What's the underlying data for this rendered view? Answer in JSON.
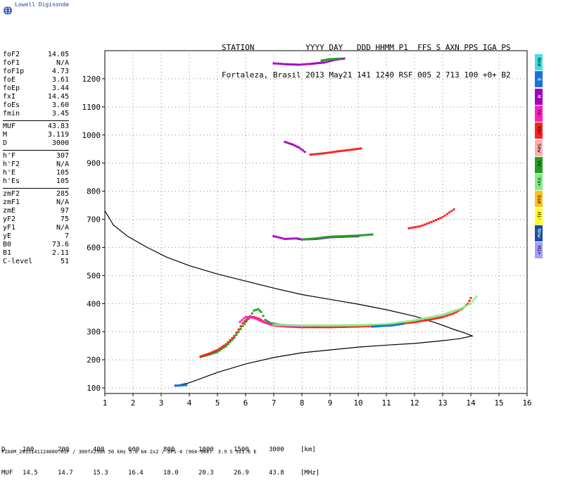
{
  "logo": {
    "text": "Lowell Digisonde"
  },
  "header": {
    "line1": "STATION           YYYY DAY   DDD HHMM P1  FFS S AXN PPS IGA PS",
    "line2": "Fortaleza, Brasil 2013 May21 141 1240 RSF 005 2 713 100 +0+ B2"
  },
  "params_group1": [
    {
      "name": "foF2",
      "value": "14.05"
    },
    {
      "name": "foF1",
      "value": "N/A"
    },
    {
      "name": "foF1p",
      "value": "4.73"
    },
    {
      "name": "foE",
      "value": "3.61"
    },
    {
      "name": "foEp",
      "value": "3.44"
    },
    {
      "name": "fxI",
      "value": "14.45"
    },
    {
      "name": "foEs",
      "value": "3.60"
    },
    {
      "name": "fmin",
      "value": "3.45"
    }
  ],
  "params_group2": [
    {
      "name": "MUF",
      "value": "43.83"
    },
    {
      "name": "M",
      "value": "3.119"
    },
    {
      "name": "D",
      "value": "3000"
    }
  ],
  "params_group3": [
    {
      "name": "h'F",
      "value": "307"
    },
    {
      "name": "h'F2",
      "value": "N/A"
    },
    {
      "name": "h'E",
      "value": "105"
    },
    {
      "name": "h'Es",
      "value": "105"
    }
  ],
  "params_group4": [
    {
      "name": "zmF2",
      "value": "285"
    },
    {
      "name": "zmF1",
      "value": "N/A"
    },
    {
      "name": "zmE",
      "value": "97"
    },
    {
      "name": "yF2",
      "value": "75"
    },
    {
      "name": "yF1",
      "value": "N/A"
    },
    {
      "name": "yE",
      "value": "7"
    },
    {
      "name": "B0",
      "value": "73.6"
    },
    {
      "name": "B1",
      "value": "2.11"
    },
    {
      "name": "C-level",
      "value": "51"
    }
  ],
  "legend": [
    {
      "label": "Nne",
      "color": "#40e0e0"
    },
    {
      "label": "E",
      "color": "#1a72d8"
    },
    {
      "label": "W",
      "color": "#a000c0"
    },
    {
      "label": "Vo-",
      "color": "#ff20c0"
    },
    {
      "label": "Xo+",
      "color": "#ff2020"
    },
    {
      "label": "Sew",
      "color": "#ffb0b0"
    },
    {
      "label": "Vo-",
      "color": "#20a020"
    },
    {
      "label": "Vo+",
      "color": "#80f080"
    },
    {
      "label": "Sse",
      "color": "#ffc020"
    },
    {
      "label": "Hi-",
      "color": "#ffff20"
    },
    {
      "label": "Nnw",
      "color": "#1a4fa0"
    },
    {
      "label": "Hi+",
      "color": "#a0a0ff"
    }
  ],
  "footer": {
    "d_label": "D",
    "d_values": [
      "100",
      "200",
      "400",
      "600",
      "800",
      "1000",
      "1500",
      "3000"
    ],
    "d_unit": "[km]",
    "muf_label": "MUF",
    "muf_values": [
      "14.5",
      "14.7",
      "15.3",
      "16.4",
      "18.0",
      "20.3",
      "26.9",
      "43.8"
    ],
    "muf_unit": "[MHz]",
    "file_line": "FZA0M_2013141124000.RSF / 300fx256h 50 kHz 5.0 km 2x2 / DPS-4 (904-904)  3.9 S 321.6 E"
  },
  "chart_data": {
    "type": "scatter",
    "xlim": [
      1,
      16
    ],
    "ylim": [
      80,
      1300
    ],
    "x_ticks": [
      1,
      2,
      3,
      4,
      5,
      6,
      7,
      8,
      9,
      10,
      11,
      12,
      13,
      14,
      15,
      16
    ],
    "y_ticks": [
      100,
      200,
      300,
      400,
      500,
      600,
      700,
      800,
      900,
      1000,
      1100,
      1200
    ],
    "grid": true,
    "series": [
      {
        "color": "#20a020",
        "points": [
          [
            4.4,
            210
          ],
          [
            4.7,
            218
          ],
          [
            5.0,
            228
          ],
          [
            5.3,
            248
          ],
          [
            5.6,
            278
          ],
          [
            5.9,
            320
          ],
          [
            6.1,
            345
          ],
          [
            6.3,
            375
          ],
          [
            6.45,
            380
          ],
          [
            6.55,
            370
          ],
          [
            6.7,
            342
          ],
          [
            6.9,
            330
          ],
          [
            7.2,
            325
          ],
          [
            7.6,
            322
          ]
        ]
      },
      {
        "color": "#ff2020",
        "points": [
          [
            4.4,
            212
          ],
          [
            4.7,
            222
          ],
          [
            5.0,
            235
          ],
          [
            5.3,
            255
          ],
          [
            5.6,
            285
          ],
          [
            5.9,
            330
          ],
          [
            6.1,
            350
          ],
          [
            6.3,
            352
          ],
          [
            6.5,
            345
          ],
          [
            6.7,
            332
          ],
          [
            7.0,
            322
          ],
          [
            7.5,
            318
          ],
          [
            8.0,
            316
          ],
          [
            9.0,
            316
          ],
          [
            10.0,
            318
          ],
          [
            11.0,
            322
          ],
          [
            11.5,
            328
          ],
          [
            12.0,
            334
          ],
          [
            12.5,
            342
          ],
          [
            13.0,
            352
          ],
          [
            13.4,
            365
          ],
          [
            13.7,
            382
          ],
          [
            13.9,
            400
          ],
          [
            14.0,
            420
          ]
        ]
      },
      {
        "color": "#ff20c0",
        "points": [
          [
            5.8,
            335
          ],
          [
            6.0,
            352
          ],
          [
            6.2,
            352
          ],
          [
            6.4,
            345
          ],
          [
            6.6,
            335
          ],
          [
            7.0,
            324
          ],
          [
            7.5,
            320
          ],
          [
            8.0,
            318
          ]
        ]
      },
      {
        "color": "#80f080",
        "points": [
          [
            7.0,
            325
          ],
          [
            8.0,
            322
          ],
          [
            9.0,
            322
          ],
          [
            10.0,
            323
          ],
          [
            11.0,
            326
          ],
          [
            12.0,
            340
          ],
          [
            13.0,
            360
          ],
          [
            13.6,
            380
          ],
          [
            14.0,
            400
          ],
          [
            14.2,
            425
          ]
        ]
      },
      {
        "color": "#a000c0",
        "points": [
          [
            7.0,
            640
          ],
          [
            7.4,
            630
          ],
          [
            7.8,
            632
          ],
          [
            8.0,
            628
          ],
          [
            8.5,
            630
          ],
          [
            9.0,
            636
          ],
          [
            9.5,
            638
          ],
          [
            10.0,
            640
          ]
        ]
      },
      {
        "color": "#20a020",
        "points": [
          [
            8.0,
            628
          ],
          [
            8.5,
            632
          ],
          [
            9.0,
            638
          ],
          [
            9.5,
            640
          ],
          [
            10.0,
            642
          ],
          [
            10.5,
            646
          ]
        ]
      },
      {
        "color": "#ff2020",
        "points": [
          [
            11.8,
            668
          ],
          [
            12.2,
            675
          ],
          [
            12.6,
            690
          ],
          [
            13.0,
            708
          ],
          [
            13.4,
            735
          ]
        ]
      },
      {
        "color": "#ff2020",
        "points": [
          [
            8.3,
            930
          ],
          [
            8.8,
            935
          ],
          [
            9.3,
            942
          ],
          [
            9.8,
            948
          ],
          [
            10.1,
            952
          ]
        ]
      },
      {
        "color": "#a000c0",
        "points": [
          [
            7.4,
            975
          ],
          [
            7.7,
            965
          ],
          [
            7.9,
            955
          ],
          [
            8.1,
            940
          ]
        ]
      },
      {
        "color": "#a000c0",
        "points": [
          [
            7.0,
            1255
          ],
          [
            7.4,
            1252
          ],
          [
            7.9,
            1250
          ],
          [
            8.3,
            1253
          ],
          [
            8.8,
            1258
          ],
          [
            9.2,
            1268
          ],
          [
            9.5,
            1272
          ]
        ]
      },
      {
        "color": "#20a020",
        "points": [
          [
            8.7,
            1265
          ],
          [
            9.0,
            1270
          ],
          [
            9.4,
            1272
          ]
        ]
      },
      {
        "color": "#1a72d8",
        "points": [
          [
            3.5,
            108
          ],
          [
            3.6,
            108
          ],
          [
            3.9,
            110
          ]
        ]
      },
      {
        "color": "#1a72d8",
        "points": [
          [
            10.5,
            318
          ],
          [
            10.8,
            320
          ],
          [
            11.2,
            322
          ],
          [
            11.6,
            328
          ]
        ]
      }
    ],
    "profile_line": [
      [
        1.0,
        730
      ],
      [
        1.3,
        680
      ],
      [
        1.8,
        640
      ],
      [
        2.5,
        600
      ],
      [
        3.2,
        565
      ],
      [
        4.0,
        535
      ],
      [
        5.0,
        505
      ],
      [
        6.0,
        480
      ],
      [
        7.0,
        455
      ],
      [
        8.0,
        432
      ],
      [
        9.0,
        415
      ],
      [
        10.0,
        398
      ],
      [
        11.0,
        378
      ],
      [
        12.0,
        355
      ],
      [
        12.8,
        330
      ],
      [
        13.4,
        308
      ],
      [
        13.8,
        295
      ],
      [
        14.05,
        285
      ],
      [
        13.6,
        275
      ],
      [
        13.0,
        268
      ],
      [
        12.0,
        258
      ],
      [
        11.0,
        252
      ],
      [
        10.0,
        245
      ],
      [
        9.0,
        235
      ],
      [
        8.0,
        225
      ],
      [
        7.0,
        208
      ],
      [
        6.0,
        185
      ],
      [
        5.0,
        155
      ],
      [
        4.0,
        118
      ],
      [
        3.5,
        108
      ]
    ]
  }
}
